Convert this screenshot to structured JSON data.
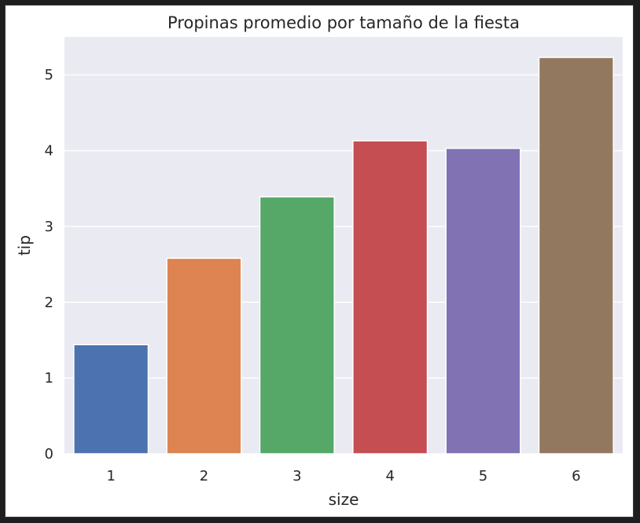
{
  "chart_data": {
    "type": "bar",
    "title": "Propinas promedio por tamaño de la fiesta",
    "xlabel": "size",
    "ylabel": "tip",
    "categories": [
      "1",
      "2",
      "3",
      "4",
      "5",
      "6"
    ],
    "values": [
      1.44,
      2.58,
      3.39,
      4.13,
      4.03,
      5.23
    ],
    "ylim": [
      0,
      5.5
    ],
    "yticks": [
      "0",
      "1",
      "2",
      "3",
      "4",
      "5"
    ],
    "grid": true,
    "colors": [
      "#4c72b0",
      "#dd8452",
      "#55a868",
      "#c44e52",
      "#8172b3",
      "#937860"
    ],
    "background": "#eaeaf2",
    "legend": "none"
  }
}
